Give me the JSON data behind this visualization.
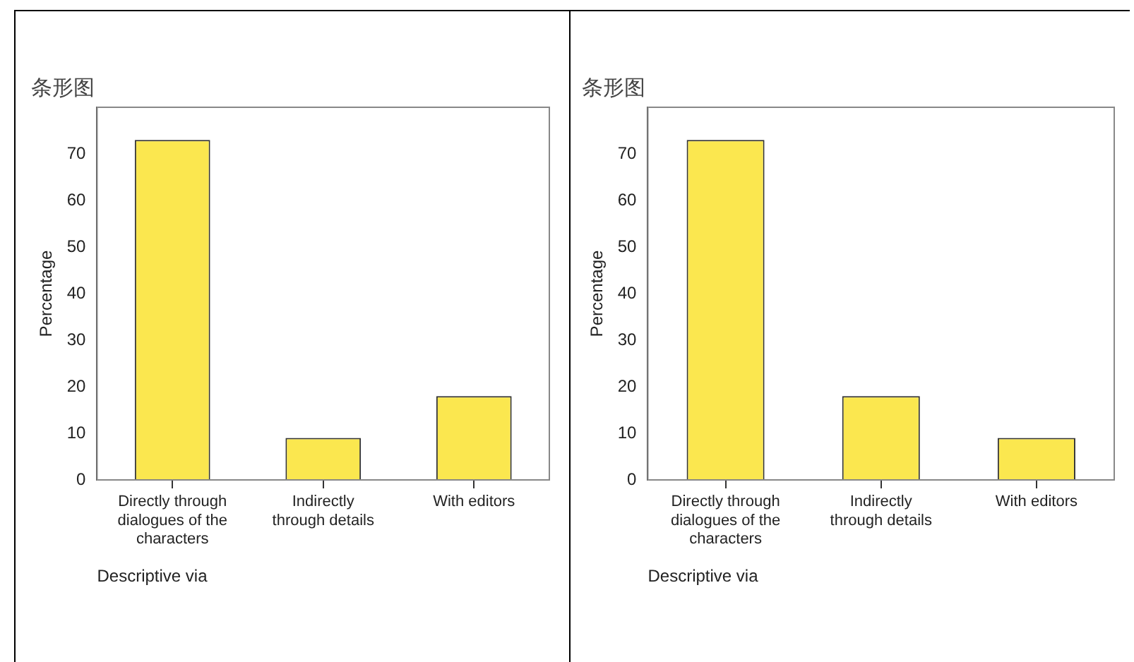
{
  "chart_data": [
    {
      "type": "bar",
      "title": "条形图",
      "xlabel": "Descriptive via",
      "ylabel": "Percentage",
      "categories": [
        "Directly through dialogues of the characters",
        "Indirectly through details",
        "With editors"
      ],
      "values": [
        73,
        9,
        18
      ],
      "color": "#fbe74f",
      "ylim": [
        0,
        80
      ],
      "yticks": [
        0,
        10,
        20,
        30,
        40,
        50,
        60,
        70
      ],
      "grid": false,
      "legend": false
    },
    {
      "type": "bar",
      "title": "条形图",
      "xlabel": "Descriptive via",
      "ylabel": "Percentage",
      "categories": [
        "Directly through dialogues of the characters",
        "Indirectly through details",
        "With editors"
      ],
      "values": [
        73,
        18,
        9
      ],
      "color": "#fbe74f",
      "ylim": [
        0,
        80
      ],
      "yticks": [
        0,
        10,
        20,
        30,
        40,
        50,
        60,
        70
      ],
      "grid": false,
      "legend": false
    }
  ]
}
